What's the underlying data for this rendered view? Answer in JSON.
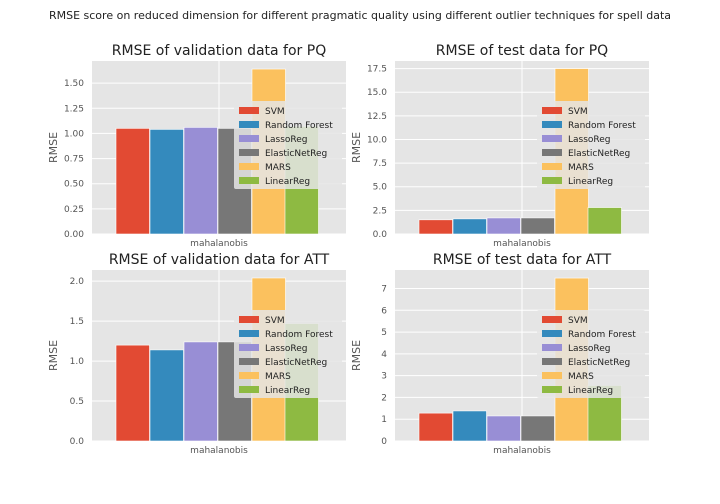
{
  "suptitle": "RMSE score on reduced dimension for different pragmatic quality using different outlier techniques for spell data",
  "colors": {
    "SVM": "#E24A33",
    "Random Forest": "#348ABD",
    "LassoReg": "#988ED5",
    "ElasticNetReg": "#777777",
    "MARS": "#FBC15E",
    "LinearReg": "#8EBA42",
    "panel_bg": "#E5E5E5",
    "grid": "#FFFFFF"
  },
  "chart_data": [
    {
      "type": "bar",
      "title": "RMSE of validation data for PQ",
      "xlabel": "",
      "ylabel": "RMSE",
      "categories": [
        "mahalanobis"
      ],
      "ylim": [
        0,
        1.72
      ],
      "yticks": [
        "0.00",
        "0.25",
        "0.50",
        "0.75",
        "1.00",
        "1.25",
        "1.50"
      ],
      "legend": "right",
      "grid": true,
      "series": [
        {
          "name": "SVM",
          "values": [
            1.05
          ]
        },
        {
          "name": "Random Forest",
          "values": [
            1.04
          ]
        },
        {
          "name": "LassoReg",
          "values": [
            1.06
          ]
        },
        {
          "name": "ElasticNetReg",
          "values": [
            1.05
          ]
        },
        {
          "name": "MARS",
          "values": [
            1.64
          ]
        },
        {
          "name": "LinearReg",
          "values": [
            1.07
          ]
        }
      ]
    },
    {
      "type": "bar",
      "title": "RMSE of test data for PQ",
      "xlabel": "",
      "ylabel": "RMSE",
      "categories": [
        "mahalanobis"
      ],
      "ylim": [
        0,
        18.3
      ],
      "yticks": [
        "0.0",
        "2.5",
        "5.0",
        "7.5",
        "10.0",
        "12.5",
        "15.0",
        "17.5"
      ],
      "legend": "right",
      "grid": true,
      "series": [
        {
          "name": "SVM",
          "values": [
            1.5
          ]
        },
        {
          "name": "Random Forest",
          "values": [
            1.6
          ]
        },
        {
          "name": "LassoReg",
          "values": [
            1.7
          ]
        },
        {
          "name": "ElasticNetReg",
          "values": [
            1.7
          ]
        },
        {
          "name": "MARS",
          "values": [
            17.5
          ]
        },
        {
          "name": "LinearReg",
          "values": [
            2.8
          ]
        }
      ]
    },
    {
      "type": "bar",
      "title": "RMSE of validation data for ATT",
      "xlabel": "",
      "ylabel": "RMSE",
      "categories": [
        "mahalanobis"
      ],
      "ylim": [
        0,
        2.14
      ],
      "yticks": [
        "0.0",
        "0.5",
        "1.0",
        "1.5",
        "2.0"
      ],
      "legend": "right",
      "grid": true,
      "series": [
        {
          "name": "SVM",
          "values": [
            1.2
          ]
        },
        {
          "name": "Random Forest",
          "values": [
            1.14
          ]
        },
        {
          "name": "LassoReg",
          "values": [
            1.24
          ]
        },
        {
          "name": "ElasticNetReg",
          "values": [
            1.24
          ]
        },
        {
          "name": "MARS",
          "values": [
            2.04
          ]
        },
        {
          "name": "LinearReg",
          "values": [
            1.47
          ]
        }
      ]
    },
    {
      "type": "bar",
      "title": "RMSE of test data for ATT",
      "xlabel": "",
      "ylabel": "RMSE",
      "categories": [
        "mahalanobis"
      ],
      "ylim": [
        0,
        7.85
      ],
      "yticks": [
        "0",
        "1",
        "2",
        "3",
        "4",
        "5",
        "6",
        "7"
      ],
      "legend": "right",
      "grid": true,
      "series": [
        {
          "name": "SVM",
          "values": [
            1.28
          ]
        },
        {
          "name": "Random Forest",
          "values": [
            1.38
          ]
        },
        {
          "name": "LassoReg",
          "values": [
            1.15
          ]
        },
        {
          "name": "ElasticNetReg",
          "values": [
            1.15
          ]
        },
        {
          "name": "MARS",
          "values": [
            7.48
          ]
        },
        {
          "name": "LinearReg",
          "values": [
            2.55
          ]
        }
      ]
    }
  ]
}
